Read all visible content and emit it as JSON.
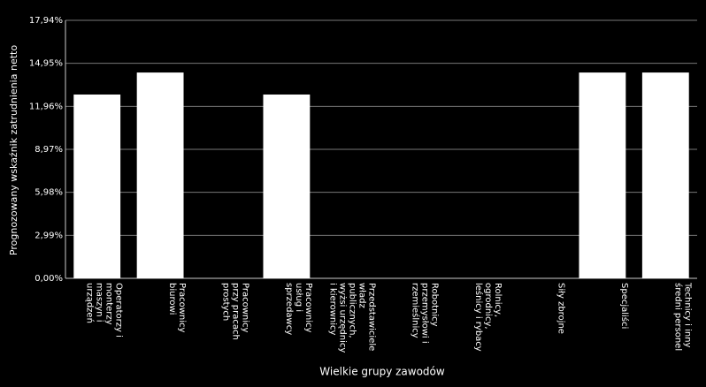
{
  "chart_data": {
    "type": "bar",
    "y_label": "Prognozowany wskaźnik zatrudnienia netto",
    "x_label": "Wielkie grupy zawodów",
    "categories": [
      "Operatorzy i monterzy maszyn i urządzeń",
      "Pracownicy biurowi",
      "Pracownicy przy pracach prostych",
      "Pracownicy usług i sprzedawcy",
      "Przedstawiciele władz publicznych, wyżsi urzędnicy i kierownicy",
      "Robotnicy przemysłowi i rzemieślnicy",
      "Rolnicy, ogrodnicy, leśnicy i rybacy",
      "Siły zbrojne",
      "Specjaliści",
      "Technicy i inny średni personel"
    ],
    "values": [
      12.78,
      14.31,
      0,
      12.78,
      0,
      0,
      0,
      0,
      14.31,
      14.31
    ],
    "color": "#ffffff",
    "ylim": [
      0,
      17.94
    ],
    "yticks": [
      {
        "value": 0,
        "label": "0,00%"
      },
      {
        "value": 2.99,
        "label": "2,99%"
      },
      {
        "value": 5.98,
        "label": "5,98%"
      },
      {
        "value": 8.97,
        "label": "8,97%"
      },
      {
        "value": 11.96,
        "label": "11,96%"
      },
      {
        "value": 14.95,
        "label": "14,95%"
      },
      {
        "value": 17.94,
        "label": "17,94%"
      }
    ],
    "grid": true
  }
}
